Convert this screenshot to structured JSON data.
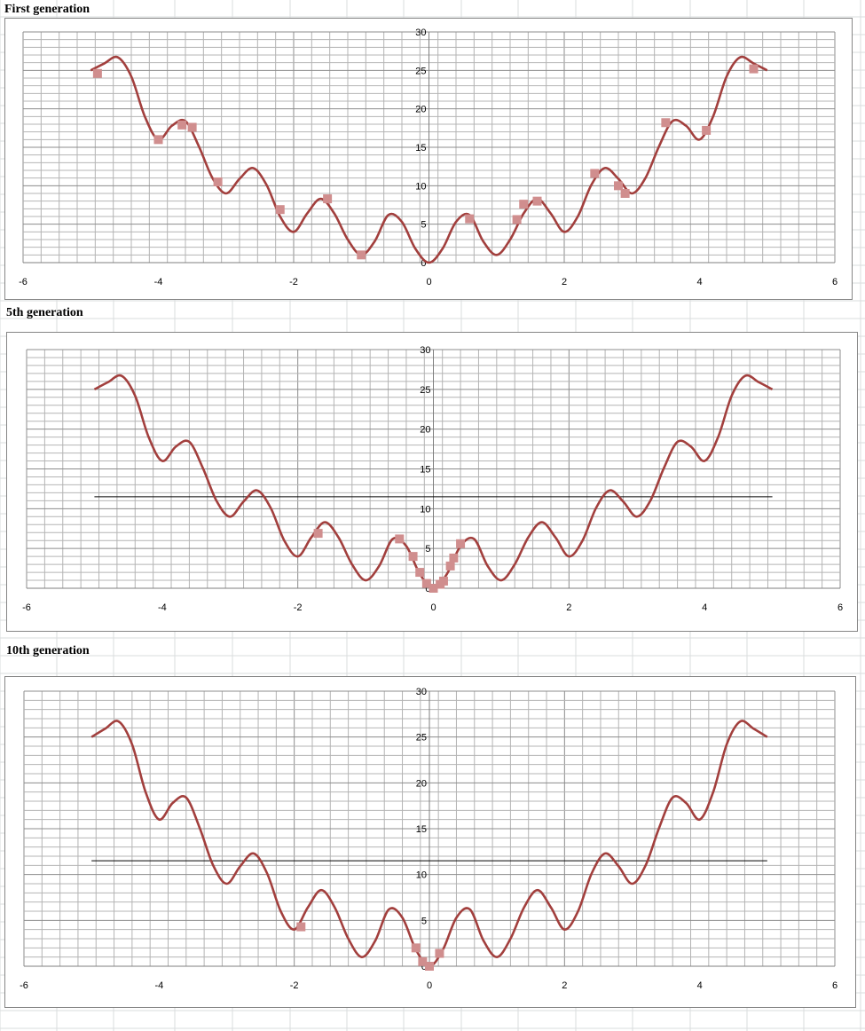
{
  "colors": {
    "curve": "#a23f3d",
    "marker": "#d08e8e",
    "grid_major": "#8c8c8c",
    "grid_minor": "#b4b4b4",
    "threshold": "#000000",
    "sheet_grid": "#dadcdd"
  },
  "chart_data": [
    {
      "type": "line",
      "title": "First generation",
      "function_samples": {
        "x": [
          -5,
          -4.8,
          -4.6,
          -4.4,
          -4.2,
          -4.0,
          -3.8,
          -3.6,
          -3.4,
          -3.2,
          -3.0,
          -2.8,
          -2.6,
          -2.4,
          -2.2,
          -2.0,
          -1.8,
          -1.6,
          -1.4,
          -1.2,
          -1.0,
          -0.8,
          -0.6,
          -0.4,
          -0.2,
          0,
          0.2,
          0.4,
          0.6,
          0.8,
          1.0,
          1.2,
          1.4,
          1.6,
          1.8,
          2.0,
          2.2,
          2.4,
          2.6,
          2.8,
          3.0,
          3.2,
          3.4,
          3.6,
          3.8,
          4.0,
          4.2,
          4.4,
          4.6,
          4.8,
          5
        ],
        "y": [
          25.0,
          25.9,
          26.7,
          24.2,
          19.0,
          16.0,
          17.8,
          18.4,
          15.1,
          11.0,
          9.0,
          10.9,
          12.3,
          10.1,
          6.0,
          4.0,
          6.4,
          8.3,
          6.4,
          3.0,
          1.0,
          2.8,
          6.2,
          5.3,
          1.8,
          0.0,
          1.8,
          5.3,
          6.2,
          2.8,
          1.0,
          3.0,
          6.4,
          8.3,
          6.4,
          4.0,
          6.0,
          10.1,
          12.3,
          10.9,
          9.0,
          11.0,
          15.1,
          18.4,
          17.8,
          16.0,
          19.0,
          24.2,
          26.7,
          25.9,
          25.0
        ]
      },
      "population": {
        "x": [
          -4.9,
          -4.0,
          -3.65,
          -3.5,
          -3.12,
          -2.2,
          -1.5,
          -1.0,
          0.6,
          1.3,
          1.4,
          1.6,
          2.45,
          2.8,
          2.9,
          3.5,
          4.1,
          4.8
        ],
        "y": [
          24.6,
          16.0,
          17.9,
          17.6,
          10.5,
          6.9,
          8.3,
          1.0,
          5.7,
          5.6,
          7.6,
          8.0,
          11.6,
          10.0,
          9.0,
          18.2,
          17.2,
          25.2
        ]
      },
      "threshold": null,
      "xlim": [
        -6,
        6
      ],
      "ylim": [
        0,
        30
      ],
      "x_ticks": [
        "-6",
        "-4",
        "-2",
        "0",
        "2",
        "4",
        "6"
      ],
      "y_ticks": [
        "0",
        "5",
        "10",
        "15",
        "20",
        "25",
        "30"
      ],
      "grid": true
    },
    {
      "type": "line",
      "title": "5th generation",
      "function_samples": {
        "x": [
          -5,
          -4.8,
          -4.6,
          -4.4,
          -4.2,
          -4.0,
          -3.8,
          -3.6,
          -3.4,
          -3.2,
          -3.0,
          -2.8,
          -2.6,
          -2.4,
          -2.2,
          -2.0,
          -1.8,
          -1.6,
          -1.4,
          -1.2,
          -1.0,
          -0.8,
          -0.6,
          -0.4,
          -0.2,
          0,
          0.2,
          0.4,
          0.6,
          0.8,
          1.0,
          1.2,
          1.4,
          1.6,
          1.8,
          2.0,
          2.2,
          2.4,
          2.6,
          2.8,
          3.0,
          3.2,
          3.4,
          3.6,
          3.8,
          4.0,
          4.2,
          4.4,
          4.6,
          4.8,
          5
        ],
        "y": [
          25.0,
          25.9,
          26.7,
          24.2,
          19.0,
          16.0,
          17.8,
          18.4,
          15.1,
          11.0,
          9.0,
          10.9,
          12.3,
          10.1,
          6.0,
          4.0,
          6.4,
          8.3,
          6.4,
          3.0,
          1.0,
          2.8,
          6.2,
          5.3,
          1.8,
          0.0,
          1.8,
          5.3,
          6.2,
          2.8,
          1.0,
          3.0,
          6.4,
          8.3,
          6.4,
          4.0,
          6.0,
          10.1,
          12.3,
          10.9,
          9.0,
          11.0,
          15.1,
          18.4,
          17.8,
          16.0,
          19.0,
          24.2,
          26.7,
          25.9,
          25.0
        ]
      },
      "population": {
        "x": [
          -1.7,
          -0.5,
          -0.3,
          -0.2,
          -0.1,
          0.0,
          0.1,
          0.15,
          0.25,
          0.3,
          0.4
        ],
        "y": [
          6.9,
          6.2,
          4.0,
          2.0,
          0.6,
          0.0,
          0.5,
          0.9,
          2.8,
          3.8,
          5.6
        ]
      },
      "threshold": {
        "y": 11.5,
        "x": [
          -5,
          5
        ]
      },
      "xlim": [
        -6,
        6
      ],
      "ylim": [
        0,
        30
      ],
      "x_ticks": [
        "-6",
        "-4",
        "-2",
        "0",
        "2",
        "4",
        "6"
      ],
      "y_ticks": [
        "0",
        "5",
        "10",
        "15",
        "20",
        "25",
        "30"
      ],
      "grid": true
    },
    {
      "type": "line",
      "title": "10th generation",
      "function_samples": {
        "x": [
          -5,
          -4.8,
          -4.6,
          -4.4,
          -4.2,
          -4.0,
          -3.8,
          -3.6,
          -3.4,
          -3.2,
          -3.0,
          -2.8,
          -2.6,
          -2.4,
          -2.2,
          -2.0,
          -1.8,
          -1.6,
          -1.4,
          -1.2,
          -1.0,
          -0.8,
          -0.6,
          -0.4,
          -0.2,
          0,
          0.2,
          0.4,
          0.6,
          0.8,
          1.0,
          1.2,
          1.4,
          1.6,
          1.8,
          2.0,
          2.2,
          2.4,
          2.6,
          2.8,
          3.0,
          3.2,
          3.4,
          3.6,
          3.8,
          4.0,
          4.2,
          4.4,
          4.6,
          4.8,
          5
        ],
        "y": [
          25.0,
          25.9,
          26.7,
          24.2,
          19.0,
          16.0,
          17.8,
          18.4,
          15.1,
          11.0,
          9.0,
          10.9,
          12.3,
          10.1,
          6.0,
          4.0,
          6.4,
          8.3,
          6.4,
          3.0,
          1.0,
          2.8,
          6.2,
          5.3,
          1.8,
          0.0,
          1.8,
          5.3,
          6.2,
          2.8,
          1.0,
          3.0,
          6.4,
          8.3,
          6.4,
          4.0,
          6.0,
          10.1,
          12.3,
          10.9,
          9.0,
          11.0,
          15.1,
          18.4,
          17.8,
          16.0,
          19.0,
          24.2,
          26.7,
          25.9,
          25.0
        ]
      },
      "population": {
        "x": [
          -1.9,
          -0.2,
          -0.1,
          0.0,
          0.15
        ],
        "y": [
          4.3,
          2.0,
          0.5,
          0.0,
          1.4
        ]
      },
      "threshold": {
        "y": 11.5,
        "x": [
          -5,
          5
        ]
      },
      "xlim": [
        -6,
        6
      ],
      "ylim": [
        0,
        30
      ],
      "x_ticks": [
        "-6",
        "-4",
        "-2",
        "0",
        "2",
        "4",
        "6"
      ],
      "y_ticks": [
        "0",
        "5",
        "10",
        "15",
        "20",
        "25",
        "30"
      ],
      "grid": true
    }
  ]
}
